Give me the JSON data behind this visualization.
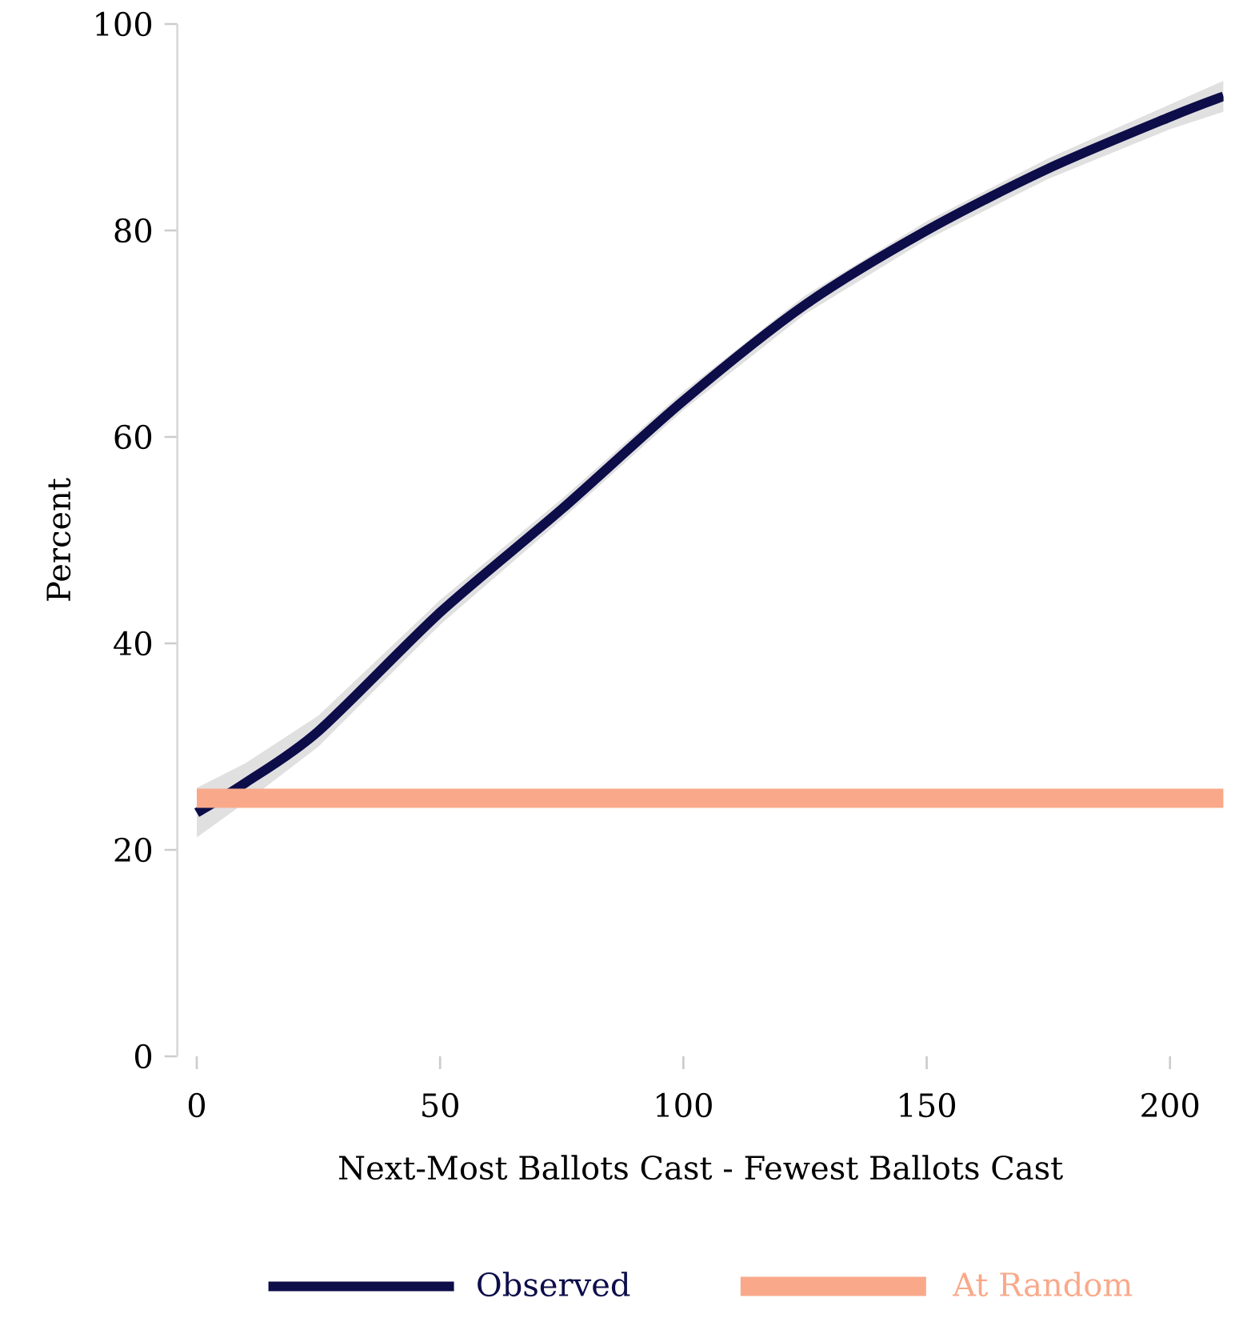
{
  "chart_data": {
    "type": "line",
    "xlabel": "Next-Most Ballots Cast - Fewest Ballots Cast",
    "ylabel": "Percent",
    "xlim": [
      -4,
      211
    ],
    "ylim": [
      0,
      100
    ],
    "xticks": [
      0,
      50,
      100,
      150,
      200
    ],
    "yticks": [
      0,
      20,
      40,
      60,
      80,
      100
    ],
    "grid": false,
    "legend": "bottom",
    "marker": "none",
    "line_style": "solid",
    "series": [
      {
        "name": "Observed",
        "color": "#0d0d4a",
        "x": [
          0,
          10,
          25,
          50,
          75,
          100,
          125,
          150,
          175,
          200,
          211
        ],
        "values": [
          23.6,
          26.5,
          31.5,
          43,
          53,
          63.5,
          72.8,
          80,
          86,
          91,
          93
        ],
        "lower": [
          21.2,
          24.6,
          30,
          41.8,
          52,
          62.6,
          71.9,
          79.1,
          85,
          89.8,
          91.5
        ],
        "upper": [
          26,
          28.4,
          33,
          44.2,
          54,
          64.4,
          73.7,
          80.9,
          87,
          92.2,
          94.5
        ]
      },
      {
        "name": "At Random",
        "color": "#f9a98a",
        "x": [
          0,
          211
        ],
        "values": [
          25,
          25
        ]
      }
    ]
  }
}
